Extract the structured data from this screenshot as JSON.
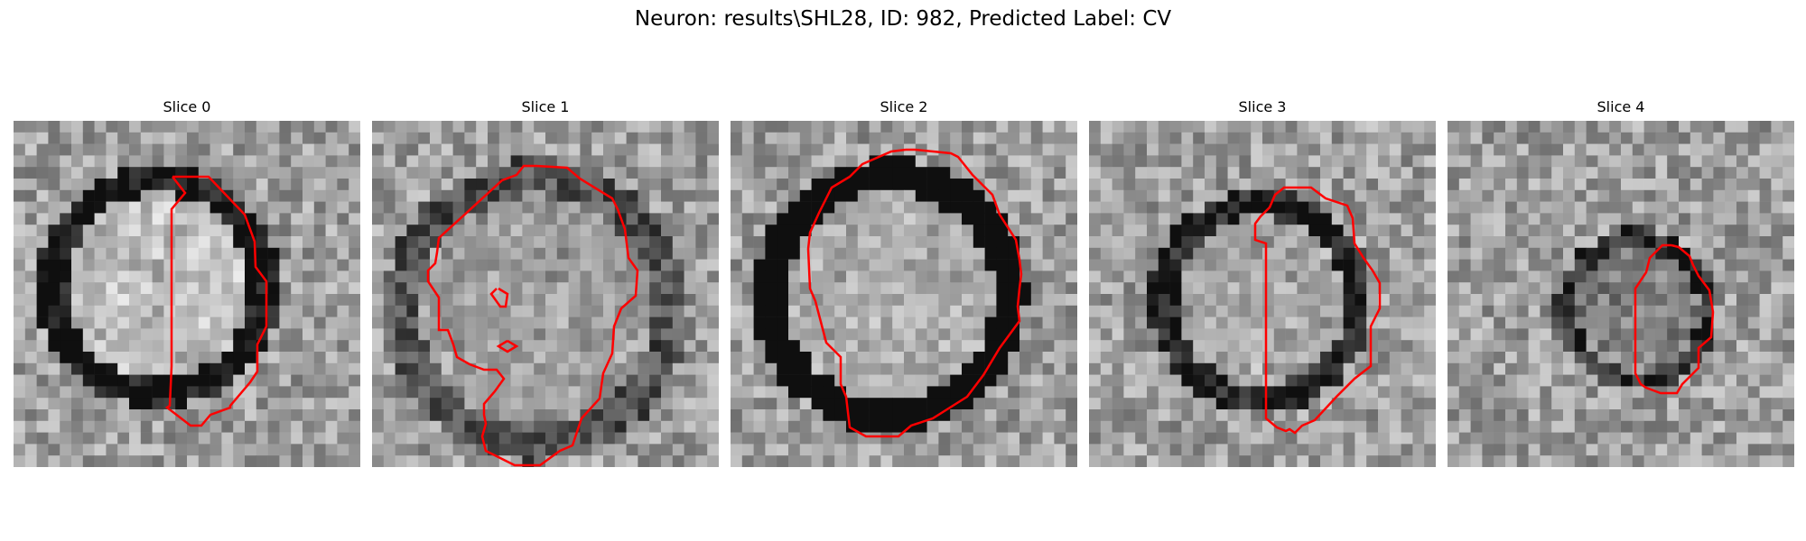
{
  "figure": {
    "title": "Neuron: results\\SHL28, ID: 982, Predicted Label: CV"
  },
  "contour_color": "#ff0000",
  "panels": [
    {
      "title": "Slice 0",
      "seed": 11,
      "ring_strength": 0.55,
      "inner_brightness": 0.85
    },
    {
      "title": "Slice 1",
      "seed": 23,
      "ring_strength": 0.3,
      "inner_brightness": 0.62
    },
    {
      "title": "Slice 2",
      "seed": 37,
      "ring_strength": 0.75,
      "inner_brightness": 0.72
    },
    {
      "title": "Slice 3",
      "seed": 51,
      "ring_strength": 0.5,
      "inner_brightness": 0.68
    },
    {
      "title": "Slice 4",
      "seed": 67,
      "ring_strength": 0.45,
      "inner_brightness": 0.4
    }
  ]
}
